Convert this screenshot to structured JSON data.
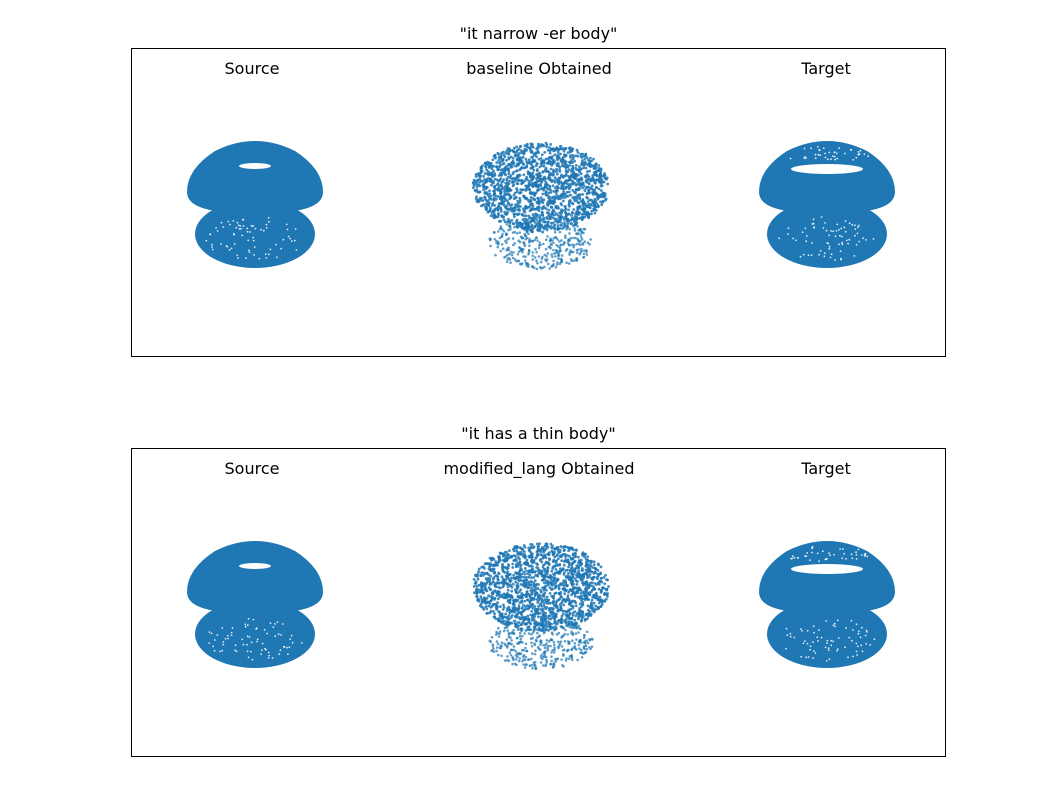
{
  "figure": {
    "panels": [
      {
        "title": "\"it narrow -er body\"",
        "subplots": [
          "Source",
          "baseline Obtained",
          "Target"
        ]
      },
      {
        "title": "\"it has a thin body\"",
        "subplots": [
          "Source",
          "modified_lang Obtained",
          "Target"
        ]
      }
    ]
  },
  "colors": {
    "points": "#1f77b4",
    "frame": "#000000"
  },
  "chart_data": [
    {
      "type": "scatter",
      "title": "\"it narrow -er body\"",
      "subplots": [
        {
          "title": "Source",
          "shape": "point-cloud",
          "density": "dense"
        },
        {
          "title": "baseline Obtained",
          "shape": "point-cloud",
          "density": "sparse"
        },
        {
          "title": "Target",
          "shape": "point-cloud",
          "density": "dense"
        }
      ],
      "axes_visible": false,
      "grid": false
    },
    {
      "type": "scatter",
      "title": "\"it has a thin body\"",
      "subplots": [
        {
          "title": "Source",
          "shape": "point-cloud",
          "density": "dense"
        },
        {
          "title": "modified_lang Obtained",
          "shape": "point-cloud",
          "density": "sparse"
        },
        {
          "title": "Target",
          "shape": "point-cloud",
          "density": "dense"
        }
      ],
      "axes_visible": false,
      "grid": false
    }
  ]
}
